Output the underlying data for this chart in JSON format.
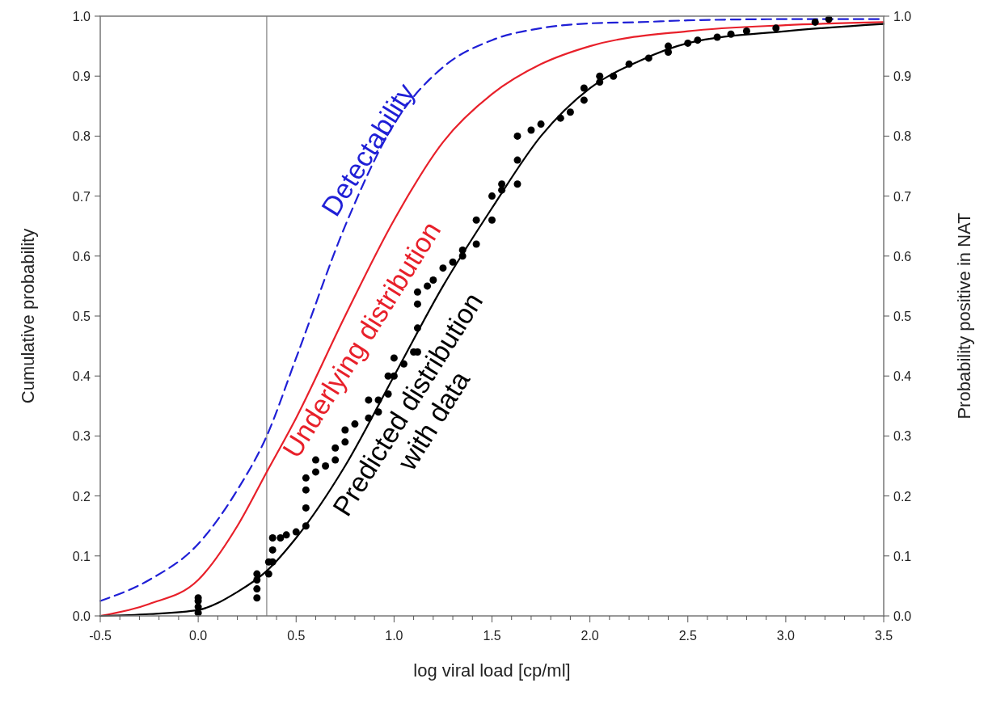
{
  "chart_data": {
    "type": "line",
    "xlabel": "log viral load [cp/ml]",
    "ylabel": "Cumulative probability",
    "y2label": "Probability positive in NAT",
    "xlim": [
      -0.5,
      3.5
    ],
    "xticks": [
      {
        "value": -0.5,
        "label": "-0.5"
      },
      {
        "value": -0.4,
        "label": null
      },
      {
        "value": -0.3,
        "label": null
      },
      {
        "value": -0.2,
        "label": null
      },
      {
        "value": -0.1,
        "label": null
      },
      {
        "value": 0,
        "label": "0.0"
      },
      {
        "value": 0.1,
        "label": null
      },
      {
        "value": 0.2,
        "label": null
      },
      {
        "value": 0.3,
        "label": null
      },
      {
        "value": 0.4,
        "label": null
      },
      {
        "value": 0.5,
        "label": "0.5"
      },
      {
        "value": 0.6,
        "label": null
      },
      {
        "value": 0.7,
        "label": null
      },
      {
        "value": 0.8,
        "label": null
      },
      {
        "value": 0.9,
        "label": null
      },
      {
        "value": 1,
        "label": "1.0"
      },
      {
        "value": 1.1,
        "label": null
      },
      {
        "value": 1.2,
        "label": null
      },
      {
        "value": 1.3,
        "label": null
      },
      {
        "value": 1.4,
        "label": null
      },
      {
        "value": 1.5,
        "label": "1.5"
      },
      {
        "value": 1.6,
        "label": null
      },
      {
        "value": 1.7,
        "label": null
      },
      {
        "value": 1.8,
        "label": null
      },
      {
        "value": 1.9,
        "label": null
      },
      {
        "value": 2,
        "label": "2.0"
      },
      {
        "value": 2.1,
        "label": null
      },
      {
        "value": 2.2,
        "label": null
      },
      {
        "value": 2.3,
        "label": null
      },
      {
        "value": 2.4,
        "label": null
      },
      {
        "value": 2.5,
        "label": "2.5"
      },
      {
        "value": 2.6,
        "label": null
      },
      {
        "value": 2.7,
        "label": null
      },
      {
        "value": 2.8,
        "label": null
      },
      {
        "value": 2.9,
        "label": null
      },
      {
        "value": 3,
        "label": "3.0"
      },
      {
        "value": 3.1,
        "label": null
      },
      {
        "value": 3.2,
        "label": null
      },
      {
        "value": 3.3,
        "label": null
      },
      {
        "value": 3.4,
        "label": null
      },
      {
        "value": 3.5,
        "label": "3.5"
      }
    ],
    "ylim": [
      0,
      1
    ],
    "yticks": [
      {
        "value": 0,
        "label": "0.0"
      },
      0.1,
      0.2,
      0.3,
      0.4,
      0.5,
      0.6,
      0.7,
      0.8,
      0.9,
      {
        "value": 1,
        "label": "1.0"
      }
    ],
    "y2lim": [
      0,
      1
    ],
    "y2ticks": [
      {
        "value": 0,
        "label": "0.0"
      },
      0.1,
      0.2,
      0.3,
      0.4,
      0.5,
      0.6,
      0.7,
      0.8,
      0.9,
      {
        "value": 1,
        "label": "1.0"
      }
    ],
    "grid": false,
    "ref_lines": [
      {
        "axis": "x",
        "value": 0.35,
        "color": "#808080"
      }
    ],
    "series": [
      {
        "name": "Detectability",
        "color": "#1f1fd6",
        "line_style": "dashed",
        "x": [
          -0.5,
          -0.25,
          0,
          0.2,
          0.35,
          0.5,
          0.75,
          1.0,
          1.25,
          1.5,
          1.75,
          2.0,
          2.25,
          2.5,
          3.0,
          3.5
        ],
        "values": [
          0.025,
          0.06,
          0.12,
          0.21,
          0.3,
          0.43,
          0.65,
          0.82,
          0.915,
          0.96,
          0.98,
          0.988,
          0.99,
          0.993,
          0.995,
          0.995
        ]
      },
      {
        "name": "Underlying distribution",
        "color": "#e8202a",
        "line_style": "solid",
        "x": [
          -0.5,
          -0.25,
          0,
          0.2,
          0.35,
          0.5,
          0.75,
          1.0,
          1.25,
          1.5,
          1.75,
          2.0,
          2.5,
          3.0,
          3.5
        ],
        "values": [
          0.0,
          0.02,
          0.06,
          0.15,
          0.24,
          0.33,
          0.5,
          0.66,
          0.79,
          0.87,
          0.92,
          0.95,
          0.975,
          0.985,
          0.99
        ]
      },
      {
        "name": "Predicted distribution\nwith data",
        "color": "#000000",
        "line_style": "solid",
        "x": [
          -0.5,
          -0.25,
          0,
          0.2,
          0.35,
          0.5,
          0.75,
          1.0,
          1.25,
          1.5,
          1.75,
          2.0,
          2.25,
          2.5,
          3.0,
          3.5
        ],
        "values": [
          0.0,
          0.003,
          0.01,
          0.04,
          0.075,
          0.13,
          0.25,
          0.4,
          0.55,
          0.68,
          0.8,
          0.88,
          0.925,
          0.955,
          0.975,
          0.987
        ]
      },
      {
        "type": "scatter",
        "color": "#000000",
        "marker": "circle",
        "x": [
          0,
          0,
          0,
          0,
          0.3,
          0.3,
          0.3,
          0.3,
          0.36,
          0.36,
          0.38,
          0.38,
          0.38,
          0.42,
          0.45,
          0.5,
          0.55,
          0.55,
          0.55,
          0.55,
          0.6,
          0.6,
          0.65,
          0.7,
          0.7,
          0.75,
          0.75,
          0.8,
          0.87,
          0.87,
          0.92,
          0.92,
          0.97,
          0.97,
          1.0,
          1.0,
          1.05,
          1.1,
          1.12,
          1.12,
          1.12,
          1.12,
          1.17,
          1.2,
          1.25,
          1.3,
          1.35,
          1.35,
          1.42,
          1.42,
          1.5,
          1.5,
          1.55,
          1.55,
          1.63,
          1.63,
          1.63,
          1.7,
          1.75,
          1.85,
          1.9,
          1.97,
          1.97,
          2.05,
          2.05,
          2.12,
          2.2,
          2.3,
          2.4,
          2.4,
          2.5,
          2.55,
          2.65,
          2.72,
          2.8,
          2.95,
          3.15,
          3.22
        ],
        "values": [
          0.005,
          0.015,
          0.025,
          0.03,
          0.03,
          0.045,
          0.06,
          0.07,
          0.07,
          0.09,
          0.09,
          0.11,
          0.13,
          0.13,
          0.135,
          0.14,
          0.15,
          0.18,
          0.21,
          0.23,
          0.24,
          0.26,
          0.25,
          0.26,
          0.28,
          0.29,
          0.31,
          0.32,
          0.33,
          0.36,
          0.34,
          0.36,
          0.37,
          0.4,
          0.4,
          0.43,
          0.42,
          0.44,
          0.44,
          0.48,
          0.52,
          0.54,
          0.55,
          0.56,
          0.58,
          0.59,
          0.6,
          0.61,
          0.62,
          0.66,
          0.66,
          0.7,
          0.71,
          0.72,
          0.72,
          0.76,
          0.8,
          0.81,
          0.82,
          0.83,
          0.84,
          0.86,
          0.88,
          0.89,
          0.9,
          0.9,
          0.92,
          0.93,
          0.94,
          0.95,
          0.955,
          0.96,
          0.965,
          0.97,
          0.975,
          0.98,
          0.99,
          0.995
        ]
      }
    ]
  }
}
